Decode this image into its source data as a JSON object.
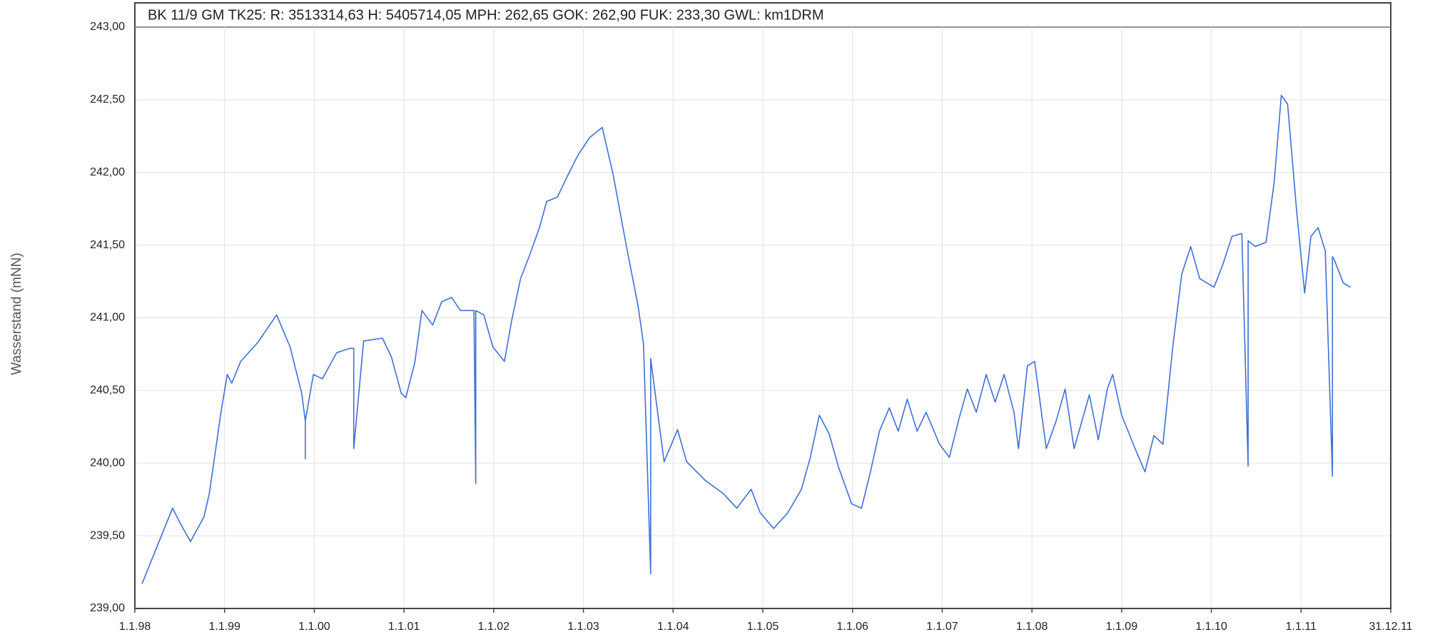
{
  "chart_data": {
    "type": "line",
    "title": "BK 11/9 GM  TK25:   R: 3513314,63  H: 5405714,05  MPH: 262,65  GOK: 262,90  FUK: 233,30  GWL: km1DRM",
    "y_label": "Wasserstand (mNN)",
    "color": "#3f6fd6",
    "grid": true,
    "xlim": [
      1998,
      2012
    ],
    "ylim": [
      239,
      243
    ],
    "xticks": [
      {
        "value": 1998,
        "label": "1.1.98"
      },
      {
        "value": 1999,
        "label": "1.1.99"
      },
      {
        "value": 2000,
        "label": "1.1.00"
      },
      {
        "value": 2001,
        "label": "1.1.01"
      },
      {
        "value": 2002,
        "label": "1.1.02"
      },
      {
        "value": 2003,
        "label": "1.1.03"
      },
      {
        "value": 2004,
        "label": "1.1.04"
      },
      {
        "value": 2005,
        "label": "1.1.05"
      },
      {
        "value": 2006,
        "label": "1.1.06"
      },
      {
        "value": 2007,
        "label": "1.1.07"
      },
      {
        "value": 2008,
        "label": "1.1.08"
      },
      {
        "value": 2009,
        "label": "1.1.09"
      },
      {
        "value": 2010,
        "label": "1.1.10"
      },
      {
        "value": 2011,
        "label": "1.1.11"
      },
      {
        "value": 2012,
        "label": "31.12.11"
      }
    ],
    "yticks": [
      {
        "value": 239,
        "label": "239,00"
      },
      {
        "value": 239.5,
        "label": "239,50"
      },
      {
        "value": 240,
        "label": "240,00"
      },
      {
        "value": 240.5,
        "label": "240,50"
      },
      {
        "value": 241,
        "label": "241,00"
      },
      {
        "value": 241.5,
        "label": "241,50"
      },
      {
        "value": 242,
        "label": "242,00"
      },
      {
        "value": 242.5,
        "label": "242,50"
      },
      {
        "value": 243,
        "label": "243,00"
      }
    ],
    "x": [
      1998.08,
      1998.42,
      1998.52,
      1998.62,
      1998.77,
      1998.83,
      1998.96,
      1999.03,
      1999.08,
      1999.18,
      1999.37,
      1999.58,
      1999.73,
      1999.86,
      1999.9,
      1999.9,
      1999.9,
      1999.99,
      2000.09,
      2000.25,
      2000.4,
      2000.44,
      2000.44,
      2000.55,
      2000.76,
      2000.86,
      2000.97,
      2001.02,
      2001.12,
      2001.2,
      2001.32,
      2001.42,
      2001.53,
      2001.63,
      2001.78,
      2001.8,
      2001.8,
      2001.89,
      2001.99,
      2002.12,
      2002.2,
      2002.3,
      2002.4,
      2002.51,
      2002.59,
      2002.71,
      2002.81,
      2002.94,
      2003.07,
      2003.21,
      2003.33,
      2003.48,
      2003.61,
      2003.67,
      2003.75,
      2003.75,
      2003.84,
      2003.9,
      2004.05,
      2004.15,
      2004.36,
      2004.56,
      2004.71,
      2004.87,
      2004.97,
      2005.12,
      2005.28,
      2005.43,
      2005.53,
      2005.63,
      2005.74,
      2005.84,
      2005.99,
      2006.1,
      2006.2,
      2006.3,
      2006.41,
      2006.51,
      2006.61,
      2006.72,
      2006.82,
      2006.97,
      2007.08,
      2007.18,
      2007.28,
      2007.38,
      2007.49,
      2007.59,
      2007.69,
      2007.8,
      2007.85,
      2007.95,
      2008.03,
      2008.16,
      2008.27,
      2008.37,
      2008.47,
      2008.64,
      2008.74,
      2008.84,
      2008.9,
      2009.0,
      2009.15,
      2009.26,
      2009.36,
      2009.46,
      2009.57,
      2009.67,
      2009.77,
      2009.87,
      2010.03,
      2010.13,
      2010.23,
      2010.34,
      2010.41,
      2010.41,
      2010.49,
      2010.61,
      2010.7,
      2010.78,
      2010.85,
      2010.95,
      2011.04,
      2011.11,
      2011.19,
      2011.27,
      2011.35,
      2011.35,
      2011.37,
      2011.47,
      2011.55
    ],
    "values": [
      239.17,
      239.69,
      239.57,
      239.46,
      239.63,
      239.79,
      240.35,
      240.61,
      240.55,
      240.7,
      240.83,
      241.02,
      240.8,
      240.48,
      240.29,
      240.03,
      240.29,
      240.61,
      240.58,
      240.76,
      240.79,
      240.79,
      240.1,
      240.84,
      240.86,
      240.73,
      240.48,
      240.45,
      240.69,
      241.05,
      240.95,
      241.11,
      241.14,
      241.05,
      241.05,
      239.86,
      241.05,
      241.02,
      240.8,
      240.7,
      240.98,
      241.27,
      241.43,
      241.62,
      241.8,
      241.83,
      241.96,
      242.12,
      242.24,
      242.31,
      241.99,
      241.49,
      241.08,
      240.82,
      239.24,
      240.72,
      240.29,
      240.01,
      240.23,
      240.01,
      239.88,
      239.79,
      239.69,
      239.82,
      239.66,
      239.55,
      239.66,
      239.82,
      240.04,
      240.33,
      240.2,
      239.98,
      239.72,
      239.69,
      239.94,
      240.22,
      240.38,
      240.22,
      240.44,
      240.22,
      240.35,
      240.13,
      240.04,
      240.29,
      240.51,
      240.35,
      240.61,
      240.42,
      240.61,
      240.35,
      240.1,
      240.67,
      240.7,
      240.1,
      240.29,
      240.51,
      240.1,
      240.47,
      240.16,
      240.51,
      240.61,
      240.33,
      240.1,
      239.94,
      240.19,
      240.13,
      240.8,
      241.3,
      241.49,
      241.27,
      241.21,
      241.37,
      241.56,
      241.58,
      239.98,
      241.53,
      241.49,
      241.52,
      241.93,
      242.53,
      242.47,
      241.74,
      241.17,
      241.56,
      241.62,
      241.46,
      239.91,
      241.42,
      241.4,
      241.24,
      241.21
    ]
  }
}
